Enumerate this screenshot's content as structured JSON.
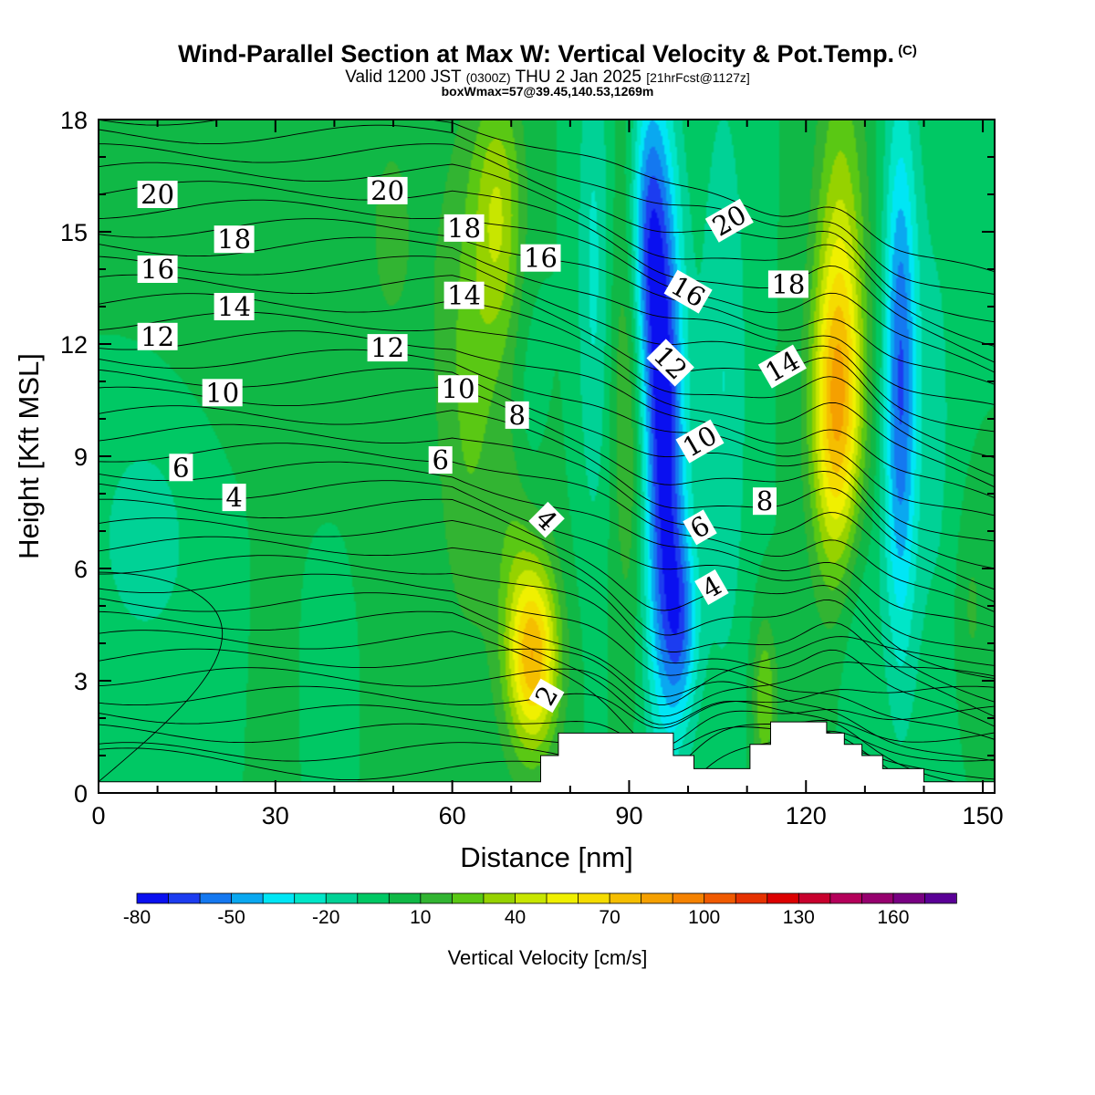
{
  "header": {
    "title": "Wind-Parallel Section at Max W: Vertical Velocity & Pot.Temp.",
    "title_mark": "(C)",
    "subtitle_a": "Valid 1200 JST",
    "subtitle_b": "(0300Z)",
    "subtitle_c": "THU 2 Jan 2025",
    "subtitle_d": "[21hrFcst@1127z]",
    "info": "boxWmax=57@39.45,140.53,1269m"
  },
  "chart_data": {
    "type": "heatmap",
    "xlabel": "Distance [nm]",
    "ylabel": "Height [Kft MSL]",
    "xlim": [
      0,
      152
    ],
    "ylim": [
      0,
      18
    ],
    "x_ticks": [
      "0",
      "30",
      "60",
      "90",
      "120",
      "150"
    ],
    "y_ticks": [
      "0",
      "3",
      "6",
      "9",
      "12",
      "15",
      "18"
    ],
    "colorbar": {
      "title": "Vertical Velocity [cm/s]",
      "levels": [
        -80,
        -70,
        -60,
        -50,
        -40,
        -30,
        -20,
        -10,
        0,
        10,
        20,
        30,
        40,
        50,
        60,
        70,
        80,
        90,
        100,
        110,
        120,
        130,
        140,
        150,
        160,
        170,
        180
      ],
      "colors": [
        "#0a10f0",
        "#1c3cf0",
        "#1478f0",
        "#0aa8f0",
        "#00e6f5",
        "#00e6c8",
        "#00d296",
        "#00c864",
        "#10b846",
        "#32b432",
        "#5ac814",
        "#96d200",
        "#c8e600",
        "#f0f000",
        "#f5dc00",
        "#f5be00",
        "#f5a000",
        "#f58200",
        "#f05a00",
        "#e63200",
        "#dc0000",
        "#c8002d",
        "#b4005a",
        "#96006e",
        "#780082",
        "#5a0096"
      ],
      "tick_labels": [
        "-80",
        "-50",
        "-20",
        "10",
        "40",
        "70",
        "100",
        "130",
        "160"
      ]
    },
    "field_background_cm_s": 0,
    "vertical_velocity_features": [
      {
        "x": 74,
        "y": 3.6,
        "sx": 3,
        "sy": 1.7,
        "w": 65
      },
      {
        "x": 72,
        "y": 5.5,
        "sx": 3,
        "sy": 3,
        "w": 25
      },
      {
        "x": 68,
        "y": 15.5,
        "sx": 3,
        "sy": 2.5,
        "w": 35
      },
      {
        "x": 63,
        "y": 11,
        "sx": 4,
        "sy": 5,
        "w": 22
      },
      {
        "x": 73,
        "y": 9,
        "sx": 2,
        "sy": 3,
        "w": -12
      },
      {
        "x": 96,
        "y": 9,
        "sx": 2.5,
        "sy": 5,
        "w": -75
      },
      {
        "x": 93,
        "y": 15,
        "sx": 2.5,
        "sy": 3,
        "w": -55
      },
      {
        "x": 99,
        "y": 4.5,
        "sx": 2,
        "sy": 1.8,
        "w": -40
      },
      {
        "x": 90,
        "y": 12,
        "sx": 2,
        "sy": 5,
        "w": 28
      },
      {
        "x": 84,
        "y": 14,
        "sx": 2,
        "sy": 5,
        "w": -22
      },
      {
        "x": 106,
        "y": 11,
        "sx": 3,
        "sy": 6,
        "w": -20
      },
      {
        "x": 113,
        "y": 2.5,
        "sx": 1.5,
        "sy": 1.5,
        "w": 30
      },
      {
        "x": 125,
        "y": 10,
        "sx": 3,
        "sy": 3,
        "w": 55
      },
      {
        "x": 126,
        "y": 13,
        "sx": 3,
        "sy": 5,
        "w": 38
      },
      {
        "x": 128,
        "y": 5,
        "sx": 3,
        "sy": 2.5,
        "w": -15
      },
      {
        "x": 136,
        "y": 11,
        "sx": 2,
        "sy": 5,
        "w": -60
      },
      {
        "x": 142,
        "y": 10,
        "sx": 3,
        "sy": 6,
        "w": -12
      },
      {
        "x": 148,
        "y": 5,
        "sx": 2,
        "sy": 2,
        "w": 12
      },
      {
        "x": 8,
        "y": 7,
        "sx": 8,
        "sy": 3,
        "w": -14
      },
      {
        "x": 22,
        "y": 15,
        "sx": 14,
        "sy": 4,
        "w": 8
      },
      {
        "x": 50,
        "y": 15,
        "sx": 5,
        "sy": 4,
        "w": 10
      },
      {
        "x": 50,
        "y": 4,
        "sx": 4,
        "sy": 3,
        "w": 8
      },
      {
        "x": 40,
        "y": 3,
        "sx": 3,
        "sy": 2,
        "w": -8
      },
      {
        "x": 30,
        "y": 3,
        "sx": 2,
        "sy": 3,
        "w": 8
      }
    ],
    "potential_temperature_contours": {
      "levels": [
        2,
        4,
        6,
        8,
        10,
        12,
        14,
        16,
        18,
        20
      ],
      "labels": [
        {
          "text": "2",
          "x": 76,
          "y": 2.6,
          "angle": -60
        },
        {
          "text": "4",
          "x": 23,
          "y": 7.9,
          "angle": 0
        },
        {
          "text": "4",
          "x": 76,
          "y": 7.3,
          "angle": 45
        },
        {
          "text": "4",
          "x": 104,
          "y": 5.5,
          "angle": -30
        },
        {
          "text": "6",
          "x": 14,
          "y": 8.7,
          "angle": 0
        },
        {
          "text": "6",
          "x": 58,
          "y": 8.9,
          "angle": 0
        },
        {
          "text": "6",
          "x": 102,
          "y": 7.1,
          "angle": -30
        },
        {
          "text": "8",
          "x": 71,
          "y": 10.1,
          "angle": 0
        },
        {
          "text": "8",
          "x": 113,
          "y": 7.8,
          "angle": 0
        },
        {
          "text": "10",
          "x": 21,
          "y": 10.7,
          "angle": 0
        },
        {
          "text": "10",
          "x": 61,
          "y": 10.8,
          "angle": 0
        },
        {
          "text": "10",
          "x": 102,
          "y": 9.4,
          "angle": -30
        },
        {
          "text": "12",
          "x": 10,
          "y": 12.2,
          "angle": 0
        },
        {
          "text": "12",
          "x": 49,
          "y": 11.9,
          "angle": 0
        },
        {
          "text": "12",
          "x": 97,
          "y": 11.5,
          "angle": 45
        },
        {
          "text": "14",
          "x": 23,
          "y": 13.0,
          "angle": 0
        },
        {
          "text": "14",
          "x": 62,
          "y": 13.3,
          "angle": 0
        },
        {
          "text": "14",
          "x": 116,
          "y": 11.4,
          "angle": -30
        },
        {
          "text": "16",
          "x": 10,
          "y": 14.0,
          "angle": 0
        },
        {
          "text": "16",
          "x": 75,
          "y": 14.3,
          "angle": 0
        },
        {
          "text": "16",
          "x": 100,
          "y": 13.4,
          "angle": 30
        },
        {
          "text": "18",
          "x": 23,
          "y": 14.8,
          "angle": 0
        },
        {
          "text": "18",
          "x": 62,
          "y": 15.1,
          "angle": 0
        },
        {
          "text": "18",
          "x": 117,
          "y": 13.6,
          "angle": 0
        },
        {
          "text": "20",
          "x": 10,
          "y": 16.0,
          "angle": 0
        },
        {
          "text": "20",
          "x": 49,
          "y": 16.1,
          "angle": 0
        },
        {
          "text": "20",
          "x": 107,
          "y": 15.3,
          "angle": -30
        }
      ]
    },
    "terrain_kft": [
      [
        0,
        0.3
      ],
      [
        75,
        0.3
      ],
      [
        75,
        1.0
      ],
      [
        78,
        1.0
      ],
      [
        78,
        1.6
      ],
      [
        97.5,
        1.6
      ],
      [
        97.5,
        1.0
      ],
      [
        101,
        1.0
      ],
      [
        101,
        0.65
      ],
      [
        110.5,
        0.65
      ],
      [
        110.5,
        1.3
      ],
      [
        114,
        1.3
      ],
      [
        114,
        1.9
      ],
      [
        123.5,
        1.9
      ],
      [
        123.5,
        1.6
      ],
      [
        126.5,
        1.6
      ],
      [
        126.5,
        1.3
      ],
      [
        129.5,
        1.3
      ],
      [
        129.5,
        1.0
      ],
      [
        133,
        1.0
      ],
      [
        133,
        0.65
      ],
      [
        140,
        0.65
      ],
      [
        140,
        0.3
      ],
      [
        152,
        0.3
      ]
    ]
  }
}
